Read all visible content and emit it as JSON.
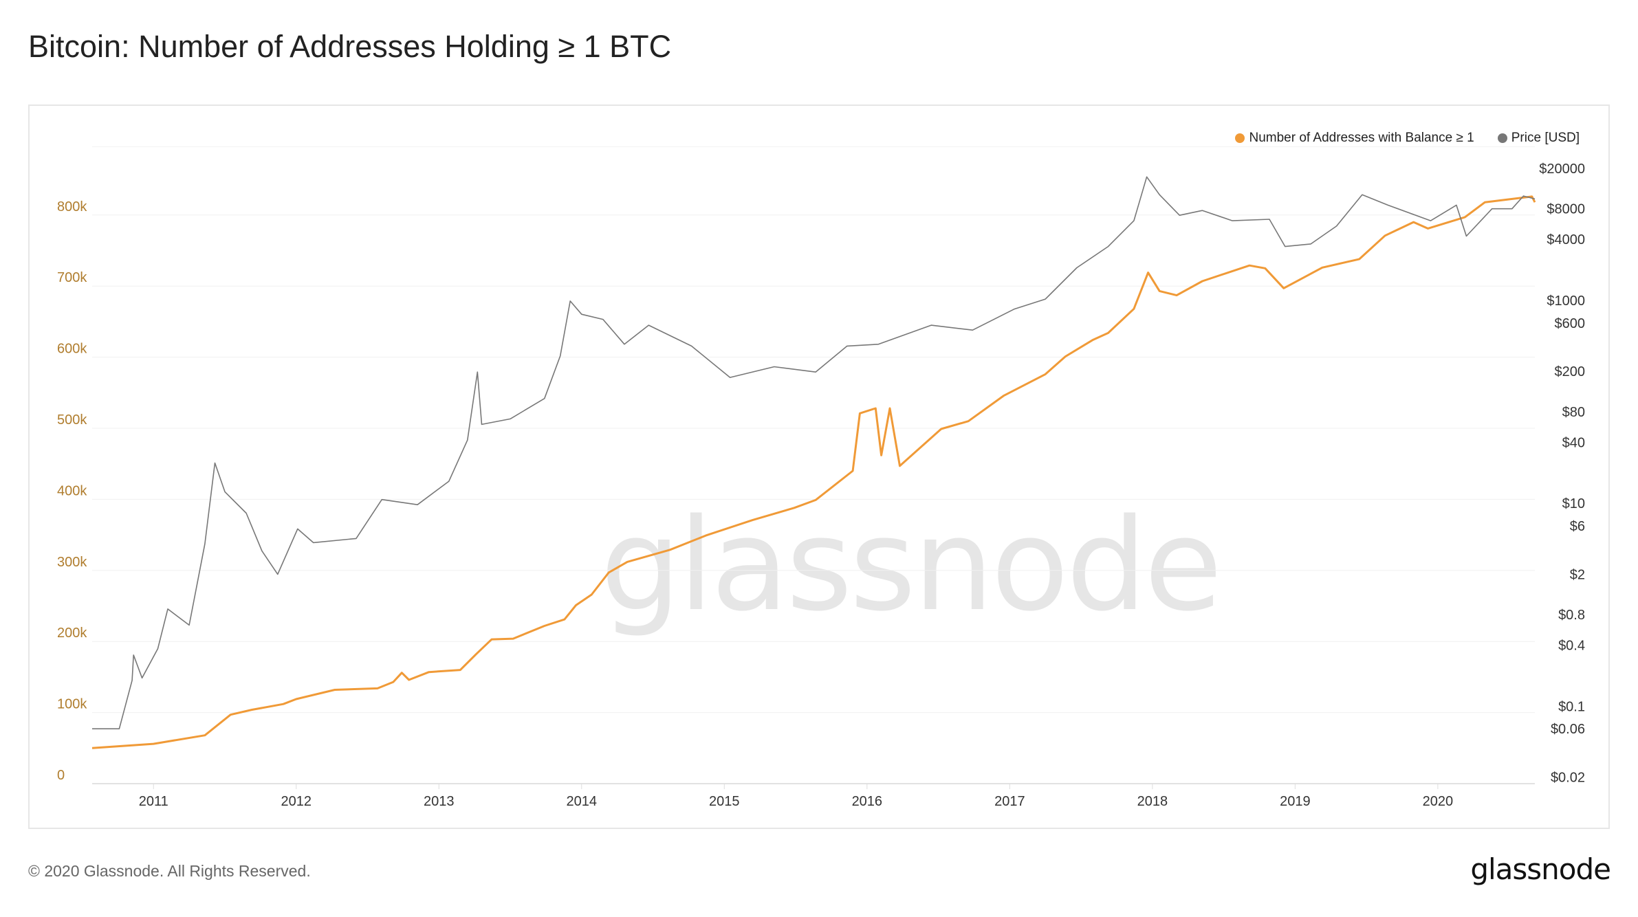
{
  "title": "Bitcoin: Number of Addresses Holding ≥ 1 BTC",
  "footer": {
    "copyright": "© 2020 Glassnode. All Rights Reserved.",
    "logo": "glassnode"
  },
  "watermark": "glassnode",
  "chart_data": {
    "type": "line",
    "title": "Bitcoin: Number of Addresses Holding ≥ 1 BTC",
    "legend_position": "top-right",
    "grid": true,
    "x_axis": {
      "ticks": [
        "2011",
        "2012",
        "2013",
        "2014",
        "2015",
        "2016",
        "2017",
        "2018",
        "2019",
        "2020"
      ],
      "range": [
        2010.57,
        2020.68
      ]
    },
    "y_left": {
      "ticks": [
        0,
        100000,
        200000,
        300000,
        400000,
        500000,
        600000,
        700000,
        800000
      ],
      "tick_labels": [
        "0",
        "100k",
        "200k",
        "300k",
        "400k",
        "500k",
        "600k",
        "700k",
        "800k"
      ],
      "range": [
        0,
        900000
      ],
      "color": "#b07d2e"
    },
    "y_right": {
      "scale": "log",
      "tick_values": [
        20000,
        8000,
        4000,
        1000,
        600,
        200,
        80,
        40,
        10,
        6,
        2,
        0.8,
        0.4,
        0.1,
        0.06,
        0.02
      ],
      "tick_labels": [
        "$20000",
        "$8000",
        "$4000",
        "$1000",
        "$600",
        "$200",
        "$80",
        "$40",
        "$10",
        "$6",
        "$2",
        "$0.8",
        "$0.4",
        "$0.1",
        "$0.06",
        "$0.02"
      ],
      "range": [
        0.02,
        20000
      ]
    },
    "series": [
      {
        "name": "Number of Addresses with Balance ≥ 1",
        "axis": "left",
        "color": "#f09a37",
        "x": [
          2010.57,
          2011.0,
          2011.36,
          2011.54,
          2011.69,
          2011.91,
          2012.0,
          2012.27,
          2012.57,
          2012.68,
          2012.74,
          2012.79,
          2012.93,
          2013.15,
          2013.26,
          2013.37,
          2013.52,
          2013.74,
          2013.88,
          2013.96,
          2014.07,
          2014.19,
          2014.32,
          2014.62,
          2014.87,
          2015.2,
          2015.49,
          2015.64,
          2015.9,
          2015.95,
          2016.06,
          2016.1,
          2016.16,
          2016.23,
          2016.52,
          2016.71,
          2016.96,
          2017.25,
          2017.39,
          2017.58,
          2017.69,
          2017.87,
          2017.97,
          2018.05,
          2018.17,
          2018.35,
          2018.68,
          2018.79,
          2018.92,
          2019.19,
          2019.45,
          2019.63,
          2019.83,
          2019.93,
          2020.19,
          2020.33,
          2020.66,
          2020.68
        ],
        "y": [
          50000,
          56000,
          68000,
          97000,
          104000,
          112000,
          119000,
          132000,
          134000,
          143000,
          156000,
          146000,
          157000,
          160000,
          182000,
          203000,
          204000,
          222000,
          231000,
          251000,
          266000,
          297000,
          312000,
          329000,
          349000,
          371000,
          388000,
          399000,
          440000,
          521000,
          528000,
          462000,
          528000,
          447000,
          499000,
          510000,
          546000,
          576000,
          601000,
          624000,
          634000,
          668000,
          719000,
          693000,
          687000,
          707000,
          729000,
          725000,
          697000,
          726000,
          738000,
          771000,
          790000,
          781000,
          797000,
          818000,
          826000,
          818000
        ]
      },
      {
        "name": "Price [USD]",
        "axis": "right",
        "color": "#777777",
        "x": [
          2010.57,
          2010.76,
          2010.85,
          2010.86,
          2010.92,
          2011.03,
          2011.1,
          2011.25,
          2011.36,
          2011.43,
          2011.5,
          2011.65,
          2011.76,
          2011.87,
          2012.01,
          2012.12,
          2012.42,
          2012.6,
          2012.85,
          2013.07,
          2013.2,
          2013.27,
          2013.3,
          2013.5,
          2013.74,
          2013.85,
          2013.92,
          2014.0,
          2014.15,
          2014.3,
          2014.47,
          2014.77,
          2015.04,
          2015.35,
          2015.64,
          2015.86,
          2016.08,
          2016.45,
          2016.74,
          2017.03,
          2017.25,
          2017.47,
          2017.69,
          2017.87,
          2017.96,
          2018.05,
          2018.19,
          2018.35,
          2018.56,
          2018.82,
          2018.93,
          2019.11,
          2019.29,
          2019.47,
          2019.65,
          2019.95,
          2020.13,
          2020.2,
          2020.38,
          2020.52,
          2020.6,
          2020.68
        ],
        "y": [
          0.06,
          0.06,
          0.18,
          0.32,
          0.19,
          0.37,
          0.91,
          0.63,
          3.98,
          25,
          13,
          8,
          3.4,
          2.0,
          5.6,
          4.1,
          4.5,
          10.9,
          9.7,
          16.5,
          42,
          197,
          60,
          68,
          108,
          283,
          987,
          730,
          650,
          370,
          570,
          355,
          174,
          222,
          197,
          355,
          370,
          570,
          510,
          820,
          1030,
          2100,
          3400,
          6100,
          16500,
          11000,
          6900,
          7700,
          6100,
          6300,
          3400,
          3600,
          5400,
          11000,
          8700,
          6100,
          8700,
          4300,
          8000,
          8000,
          10700,
          10000
        ]
      }
    ]
  }
}
